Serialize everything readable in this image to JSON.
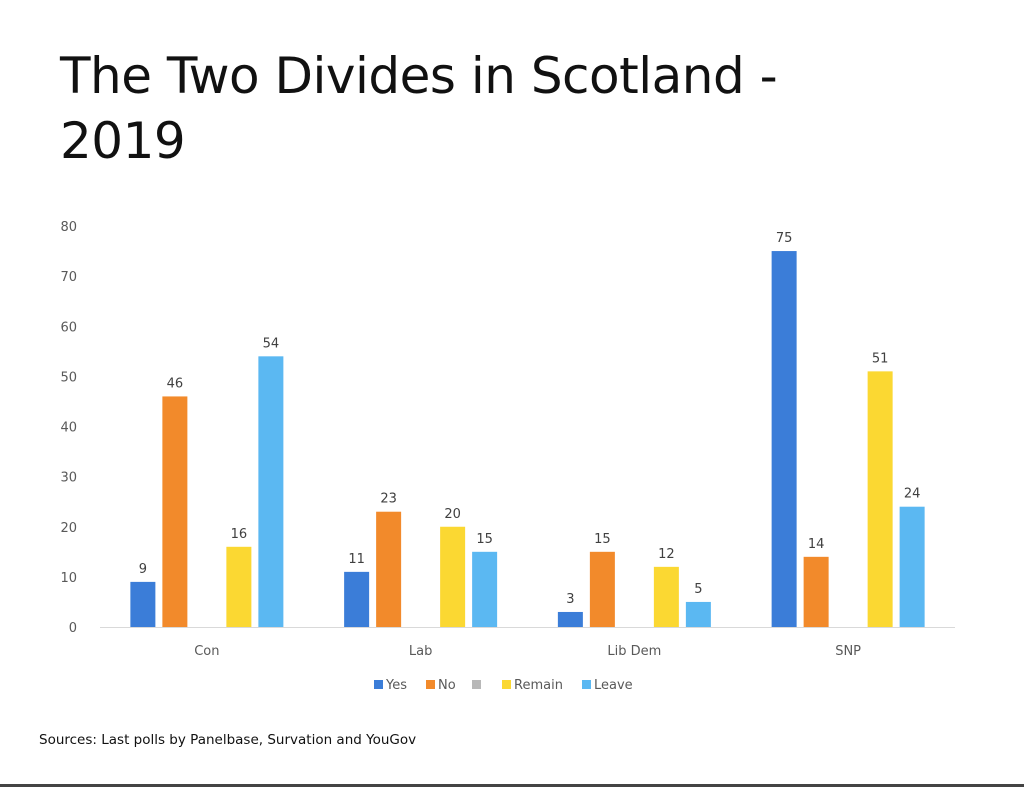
{
  "slide": {
    "title": "The Two Divides in Scotland - 2019",
    "source": "Sources: Last polls by Panelbase, Survation and YouGov"
  },
  "chart_data": {
    "type": "bar",
    "title": "",
    "xlabel": "",
    "ylabel": "",
    "categories": [
      "Con",
      "Lab",
      "Lib Dem",
      "SNP"
    ],
    "yticks": [
      0,
      10,
      20,
      30,
      40,
      50,
      60,
      70,
      80
    ],
    "ylim": [
      0,
      80
    ],
    "grid": false,
    "legend_position": "bottom",
    "series": [
      {
        "name": "Yes",
        "values": [
          9,
          11,
          3,
          75
        ],
        "color": "#3b7dd8"
      },
      {
        "name": "No",
        "values": [
          46,
          23,
          15,
          14
        ],
        "color": "#f28a2b"
      },
      {
        "name": "",
        "values": [
          null,
          null,
          null,
          null
        ],
        "color": "#b8b8b8"
      },
      {
        "name": "Remain",
        "values": [
          16,
          20,
          12,
          51
        ],
        "color": "#fbd832"
      },
      {
        "name": "Leave",
        "values": [
          54,
          15,
          5,
          24
        ],
        "color": "#5bb8f2"
      }
    ]
  }
}
